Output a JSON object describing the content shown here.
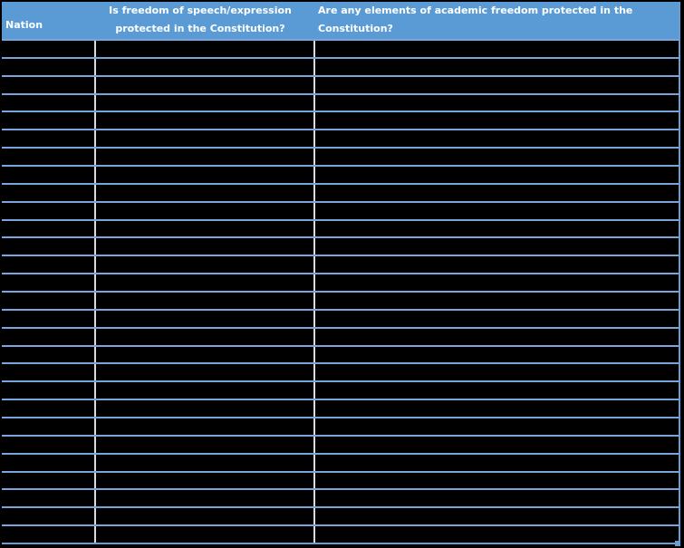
{
  "table": {
    "columns": [
      {
        "id": "nation",
        "label": "Nation",
        "lines": [
          "Nation"
        ],
        "align": "left"
      },
      {
        "id": "speech_freedom",
        "label": "Is freedom of speech/expression protected in the Constitution?",
        "lines": [
          "Is freedom of speech/expression",
          "protected in the Constitution?"
        ],
        "align": "center"
      },
      {
        "id": "academic_freedom",
        "label": "Are any elements of academic freedom protected in the Constitution?",
        "lines": [
          "Are any elements of academic freedom protected in the",
          "Constitution?"
        ],
        "align": "left"
      }
    ],
    "body_row_count": 28,
    "body_cell_text": ""
  },
  "colors": {
    "page_bg": "#000000",
    "cell_bg": "#000000",
    "header_bg": "#5B9BD5",
    "header_text": "#FFFFFF",
    "row_line": "#7AA5DC",
    "column_line": "#D8DBDF",
    "outer_border": "#6A9CD6"
  }
}
